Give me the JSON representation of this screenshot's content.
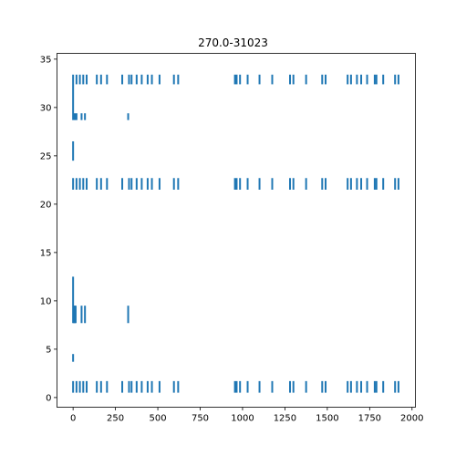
{
  "chart_data": {
    "type": "eventplot",
    "title": "270.0-31023",
    "xlabel": "",
    "ylabel": "",
    "xlim": [
      -95,
      2020
    ],
    "ylim": [
      -1,
      35.6
    ],
    "xticks": [
      0,
      250,
      500,
      750,
      1000,
      1250,
      1500,
      1750,
      2000
    ],
    "xtick_labels": [
      "0",
      "250",
      "500",
      "750",
      "1000",
      "1250",
      "1500",
      "1750",
      "2000"
    ],
    "yticks": [
      0,
      5,
      10,
      15,
      20,
      25,
      30,
      35
    ],
    "ytick_labels": [
      "0",
      "5",
      "10",
      "15",
      "20",
      "25",
      "30",
      "35"
    ],
    "grid": false,
    "color": "#1f77b4",
    "events": [
      {
        "x": [
          0,
          20,
          40,
          60,
          80,
          140,
          165,
          200,
          290,
          330,
          345,
          375,
          405,
          440,
          465,
          510,
          595,
          620,
          955,
          965,
          985,
          1030,
          1100,
          1175,
          1280,
          1300,
          1375,
          1470,
          1490,
          1620,
          1640,
          1675,
          1700,
          1735,
          1780,
          1790,
          1830,
          1900,
          1920
        ],
        "y0": 0.5,
        "y1": 1.7
      },
      {
        "x": [
          0
        ],
        "y0": 3.7,
        "y1": 4.5
      },
      {
        "x": [
          0
        ],
        "y0": 7.7,
        "y1": 12.5
      },
      {
        "x": [
          5,
          10,
          15,
          50,
          70,
          325
        ],
        "y0": 7.7,
        "y1": 9.5
      },
      {
        "x": [
          0,
          20,
          40,
          60,
          80,
          140,
          165,
          200,
          290,
          330,
          345,
          375,
          405,
          440,
          465,
          510,
          595,
          620,
          955,
          965,
          985,
          1030,
          1100,
          1175,
          1280,
          1300,
          1375,
          1470,
          1490,
          1620,
          1640,
          1675,
          1700,
          1735,
          1780,
          1790,
          1830,
          1900,
          1920
        ],
        "y0": 21.5,
        "y1": 22.7
      },
      {
        "x": [
          0
        ],
        "y0": 24.5,
        "y1": 26.5
      },
      {
        "x": [
          0
        ],
        "y0": 28.7,
        "y1": 33.4
      },
      {
        "x": [
          10,
          20,
          50,
          70,
          325
        ],
        "y0": 28.7,
        "y1": 29.4
      },
      {
        "x": [
          20,
          40,
          60,
          80,
          140,
          165,
          200,
          290,
          330,
          345,
          375,
          405,
          440,
          465,
          510,
          595,
          620,
          955,
          965,
          985,
          1030,
          1100,
          1175,
          1280,
          1300,
          1375,
          1470,
          1490,
          1620,
          1640,
          1675,
          1700,
          1735,
          1780,
          1790,
          1830,
          1900,
          1920
        ],
        "y0": 32.4,
        "y1": 33.4
      }
    ]
  }
}
